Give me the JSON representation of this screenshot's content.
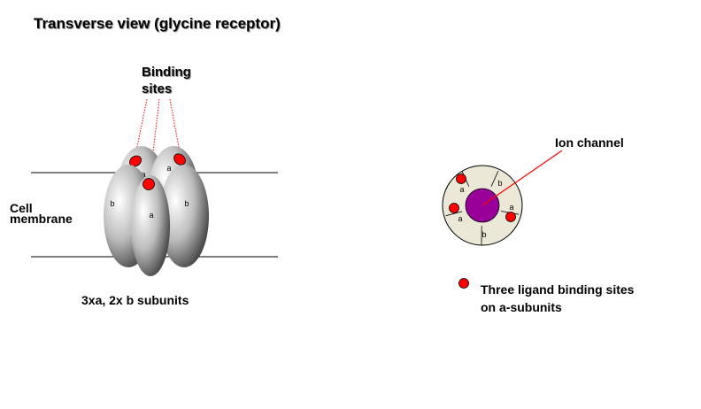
{
  "title": "Transverse  view (glycine receptor)",
  "left_panel": {
    "binding_sites_label": {
      "line1": "Binding",
      "line2": "sites"
    },
    "cell_membrane_label": {
      "line1": "Cell",
      "line2": "membrane"
    },
    "subunit_letters": {
      "alpha": "a",
      "beta": "b"
    },
    "caption": "3xa, 2x b subunits"
  },
  "right_panel": {
    "ion_channel_label": "Ion channel",
    "ring_segments": [
      "b",
      "a",
      "a",
      "b",
      "a"
    ],
    "legend_line1": "Three ligand binding sites",
    "legend_line2": "on a-subunits"
  },
  "colors": {
    "binding_site": "#ff0000",
    "ion_channel": "#990099",
    "ring_fill": "#ece8d8",
    "pointer_line": "#ff0000"
  }
}
